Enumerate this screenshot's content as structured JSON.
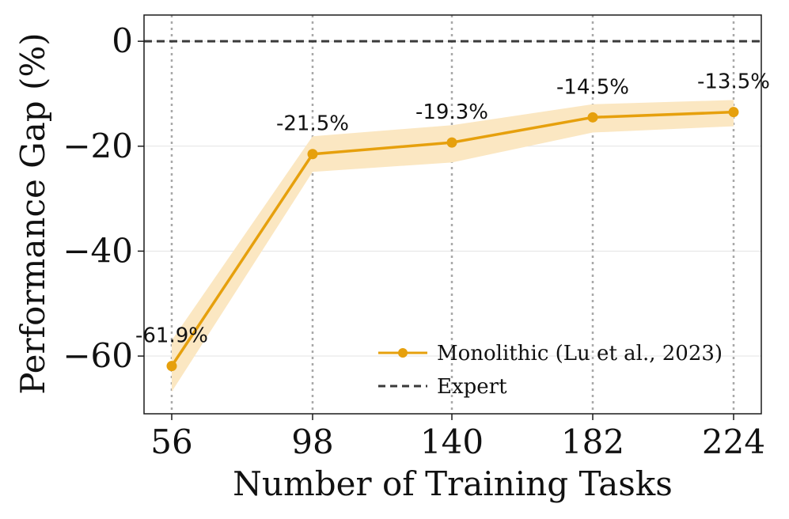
{
  "chart_data": {
    "type": "line",
    "title": "",
    "xlabel": "Number of Training Tasks",
    "ylabel": "Performance Gap (%)",
    "x": [
      56,
      98,
      140,
      182,
      224
    ],
    "x_tick_labels": [
      "56",
      "98",
      "140",
      "182",
      "224"
    ],
    "y_ticks": [
      0,
      -20,
      -40,
      -60
    ],
    "y_tick_labels": [
      "0",
      "−20",
      "−40",
      "−60"
    ],
    "ylim": [
      -71,
      5
    ],
    "grid": true,
    "legend_position": "lower-right",
    "series": [
      {
        "name": "Monolithic (Lu et al., 2023)",
        "color": "#e6a00d",
        "band_color": "#fbe7c2",
        "marker": "circle",
        "values": [
          -61.9,
          -21.5,
          -19.3,
          -14.5,
          -13.5
        ],
        "lower": [
          -66.8,
          -24.9,
          -23.1,
          -17.4,
          -16.2
        ],
        "upper": [
          -57.0,
          -18.1,
          -16.0,
          -12.0,
          -11.2
        ],
        "data_labels": [
          "-61.9%",
          "-21.5%",
          "-19.3%",
          "-14.5%",
          "-13.5%"
        ]
      },
      {
        "name": "Expert",
        "color": "#3a3a3a",
        "style": "dashed",
        "value": 0
      }
    ]
  }
}
